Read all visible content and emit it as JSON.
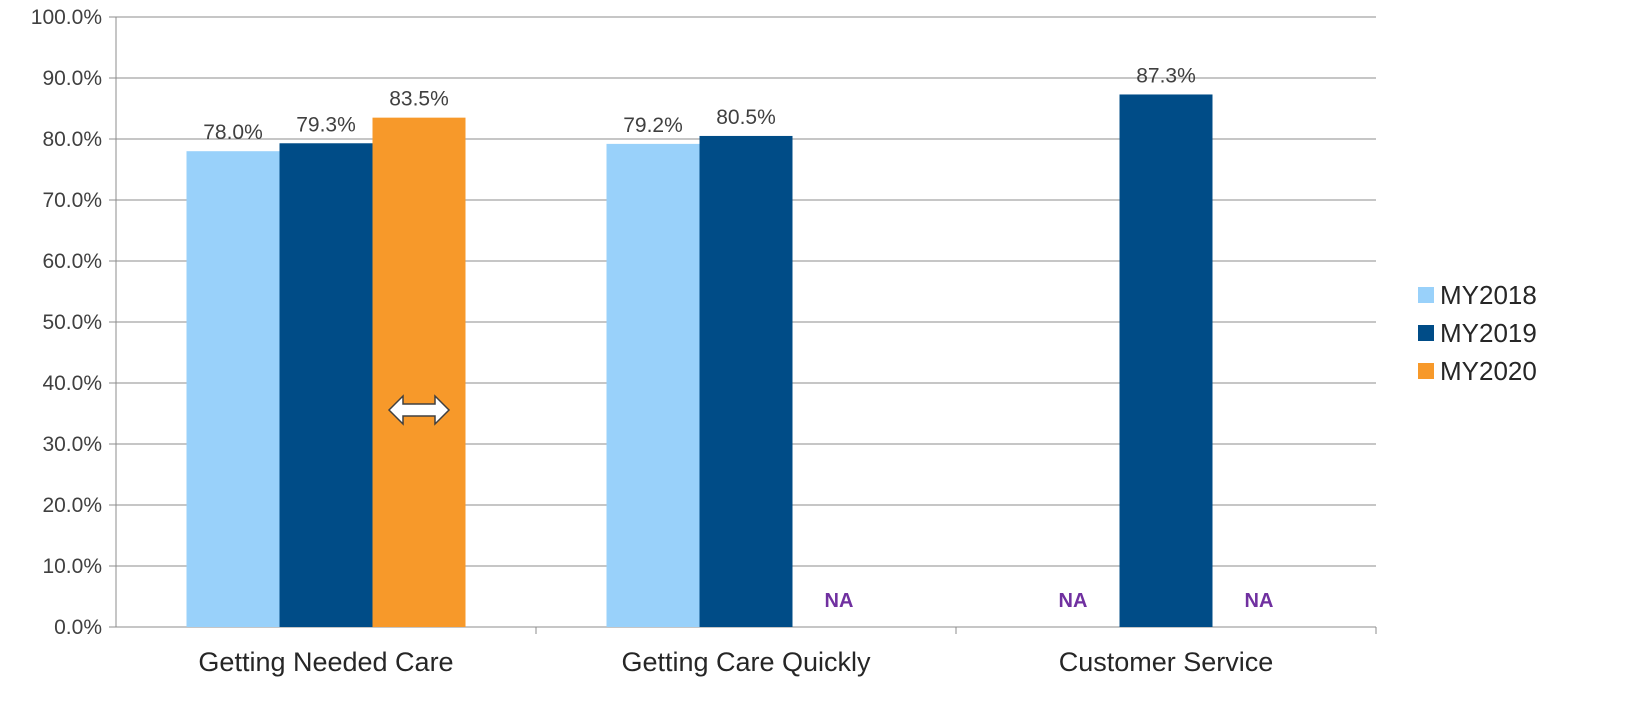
{
  "chart_data": {
    "type": "bar",
    "title": "",
    "xlabel": "",
    "ylabel": "",
    "categories": [
      "Getting Needed Care",
      "Getting Care Quickly",
      "Customer Service"
    ],
    "series": [
      {
        "name": "MY2018",
        "color": "#99D1FA",
        "values": [
          78.0,
          79.2,
          null
        ],
        "labels": [
          "78.0%",
          "79.2%",
          "NA"
        ]
      },
      {
        "name": "MY2019",
        "color": "#004C87",
        "values": [
          79.3,
          80.5,
          87.3
        ],
        "labels": [
          "79.3%",
          "80.5%",
          "87.3%"
        ]
      },
      {
        "name": "MY2020",
        "color": "#F7992A",
        "values": [
          83.5,
          null,
          null
        ],
        "labels": [
          "83.5%",
          "NA",
          "NA"
        ]
      }
    ],
    "ylim": [
      0,
      100
    ],
    "yticks": [
      "0.0%",
      "10.0%",
      "20.0%",
      "30.0%",
      "40.0%",
      "50.0%",
      "60.0%",
      "70.0%",
      "80.0%",
      "90.0%",
      "100.0%"
    ],
    "grid": true,
    "legend": "right",
    "na_color": "#7030A0",
    "annotation_icon": "double-headed-arrow-icon"
  }
}
